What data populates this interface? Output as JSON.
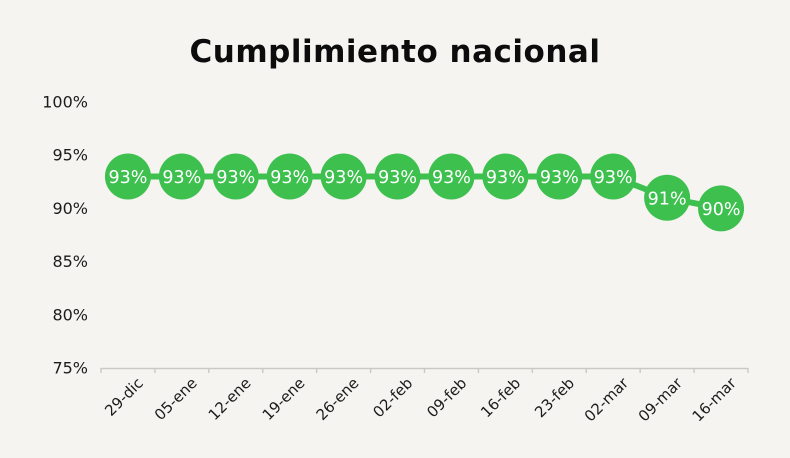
{
  "page": {
    "background_color": "#f5f4f1"
  },
  "chart_data": {
    "type": "line",
    "title": "Cumplimiento nacional",
    "categories": [
      "29-dic",
      "05-ene",
      "12-ene",
      "19-ene",
      "26-ene",
      "02-feb",
      "09-feb",
      "16-feb",
      "23-feb",
      "02-mar",
      "09-mar",
      "16-mar"
    ],
    "values": [
      93,
      93,
      93,
      93,
      93,
      93,
      93,
      93,
      93,
      93,
      91,
      90
    ],
    "point_labels": [
      "93%",
      "93%",
      "93%",
      "93%",
      "93%",
      "93%",
      "93%",
      "93%",
      "93%",
      "93%",
      "91%",
      "90%"
    ],
    "ytick_values": [
      100,
      95,
      90,
      85,
      80,
      75
    ],
    "ytick_labels": [
      "100%",
      "95%",
      "90%",
      "85%",
      "80%",
      "75%"
    ],
    "ylim": [
      75,
      100
    ],
    "xlabel": "",
    "ylabel": "",
    "grid": "off",
    "legend": "none",
    "marker": "circle-with-data-label",
    "series_color": "#3ec04f",
    "point_label_color": "#ffffff",
    "axis_color": "#c9c9c6",
    "tick_label_color": "#1c1c1c"
  }
}
